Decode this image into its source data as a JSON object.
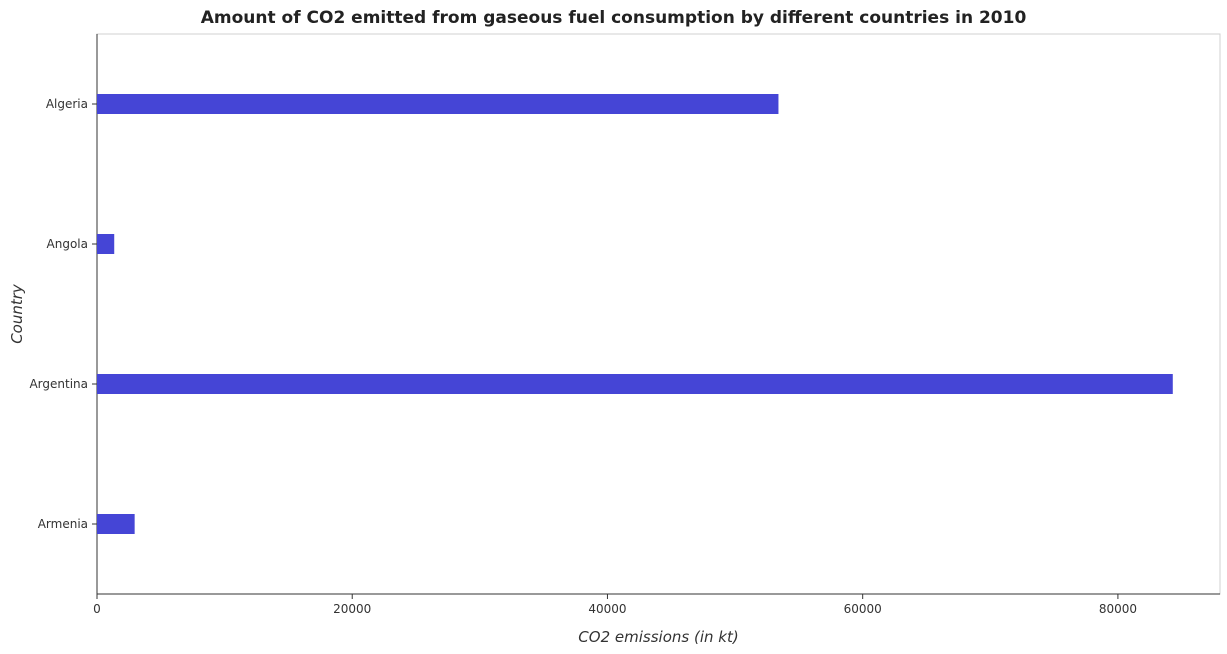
{
  "title": "Amount of CO2 emitted from gaseous fuel consumption by different countries in 2010",
  "chart_data": {
    "type": "bar",
    "orientation": "horizontal",
    "title": "Amount of CO2 emitted from gaseous fuel consumption by different countries in 2010",
    "xlabel": "CO2 emissions (in kt)",
    "ylabel": "Country",
    "categories": [
      "Algeria",
      "Angola",
      "Argentina",
      "Armenia"
    ],
    "values": [
      53400,
      1350,
      84300,
      2950
    ],
    "xlim": [
      0,
      88000
    ],
    "xticks": [
      0,
      20000,
      40000,
      60000,
      80000
    ],
    "xtick_labels": [
      "0",
      "20000",
      "40000",
      "60000",
      "80000"
    ],
    "bar_color": "#4545d6",
    "grid": false,
    "legend": "none"
  }
}
